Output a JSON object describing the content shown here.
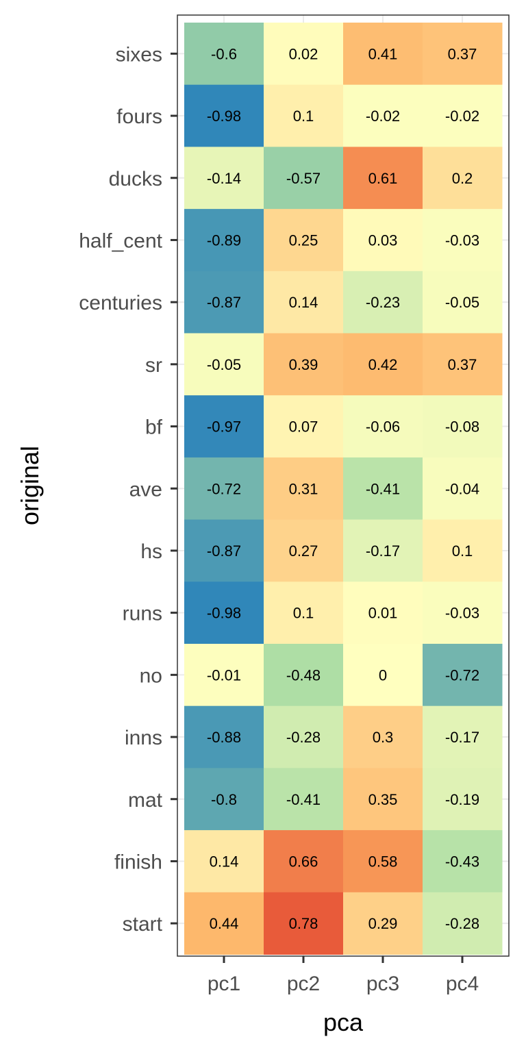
{
  "chart_data": {
    "type": "heatmap",
    "title": "",
    "xlabel": "pca",
    "ylabel": "original",
    "x": [
      "pc1",
      "pc2",
      "pc3",
      "pc4"
    ],
    "y": [
      "sixes",
      "fours",
      "ducks",
      "half_cent",
      "centuries",
      "sr",
      "bf",
      "ave",
      "hs",
      "runs",
      "no",
      "inns",
      "mat",
      "finish",
      "start"
    ],
    "values": [
      [
        -0.6,
        0.02,
        0.41,
        0.37
      ],
      [
        -0.98,
        0.1,
        -0.02,
        -0.02
      ],
      [
        -0.14,
        -0.57,
        0.61,
        0.2
      ],
      [
        -0.89,
        0.25,
        0.03,
        -0.03
      ],
      [
        -0.87,
        0.14,
        -0.23,
        -0.05
      ],
      [
        -0.05,
        0.39,
        0.42,
        0.37
      ],
      [
        -0.97,
        0.07,
        -0.06,
        -0.08
      ],
      [
        -0.72,
        0.31,
        -0.41,
        -0.04
      ],
      [
        -0.87,
        0.27,
        -0.17,
        0.1
      ],
      [
        -0.98,
        0.1,
        0.01,
        -0.03
      ],
      [
        -0.01,
        -0.48,
        0,
        -0.72
      ],
      [
        -0.88,
        -0.28,
        0.3,
        -0.17
      ],
      [
        -0.8,
        -0.41,
        0.35,
        -0.19
      ],
      [
        0.14,
        0.66,
        0.58,
        -0.43
      ],
      [
        0.44,
        0.78,
        0.29,
        -0.28
      ]
    ],
    "value_range": [
      -1,
      1
    ],
    "color_scale": [
      "#2b83ba",
      "#abdda4",
      "#ffffbf",
      "#fdae61",
      "#d7191c"
    ],
    "grid": true,
    "legend": "none"
  }
}
